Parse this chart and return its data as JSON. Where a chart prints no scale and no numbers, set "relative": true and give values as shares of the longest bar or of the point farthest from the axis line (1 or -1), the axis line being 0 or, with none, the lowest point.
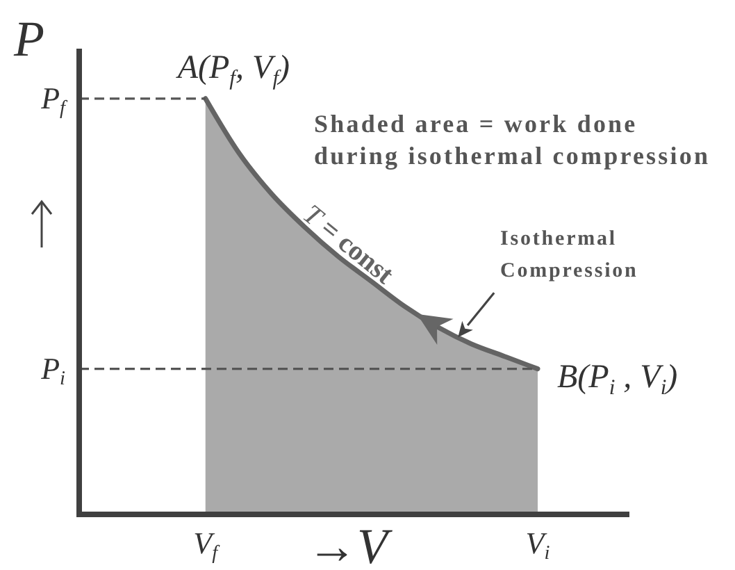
{
  "chart_data": {
    "type": "area",
    "ylabel": "P",
    "xlabel": "→V",
    "relative": true,
    "categories": [
      "V$_{f}$",
      null,
      null,
      null,
      null,
      null,
      null,
      null,
      null,
      null,
      "V$_{i}$"
    ],
    "series": [
      {
        "name": "T = const",
        "color": "#aaaaaa",
        "values": [
          1,
          0.87,
          0.77,
          0.69,
          0.62,
          0.56,
          0.5,
          0.45,
          0.41,
          0.38,
          0.35
        ]
      }
    ],
    "ref_lines": [
      {
        "axis": "y",
        "value": 1,
        "label": "P$_{f}$",
        "line_style": "dashed"
      },
      {
        "axis": "y",
        "value": 0.35,
        "label": "P$_{i}$",
        "line_style": "dashed"
      }
    ],
    "annotations": [
      {
        "text": "A(P$_{f}$, V$_{f}$)",
        "x": "V$_{f}$",
        "y": 1
      },
      {
        "text": "B(P$_{i}$ , V$_{i}$)",
        "x": "V$_{i}$",
        "y": 0.35
      },
      "Shaded area = work done during isothermal compression",
      "Isothermal Compression"
    ]
  }
}
